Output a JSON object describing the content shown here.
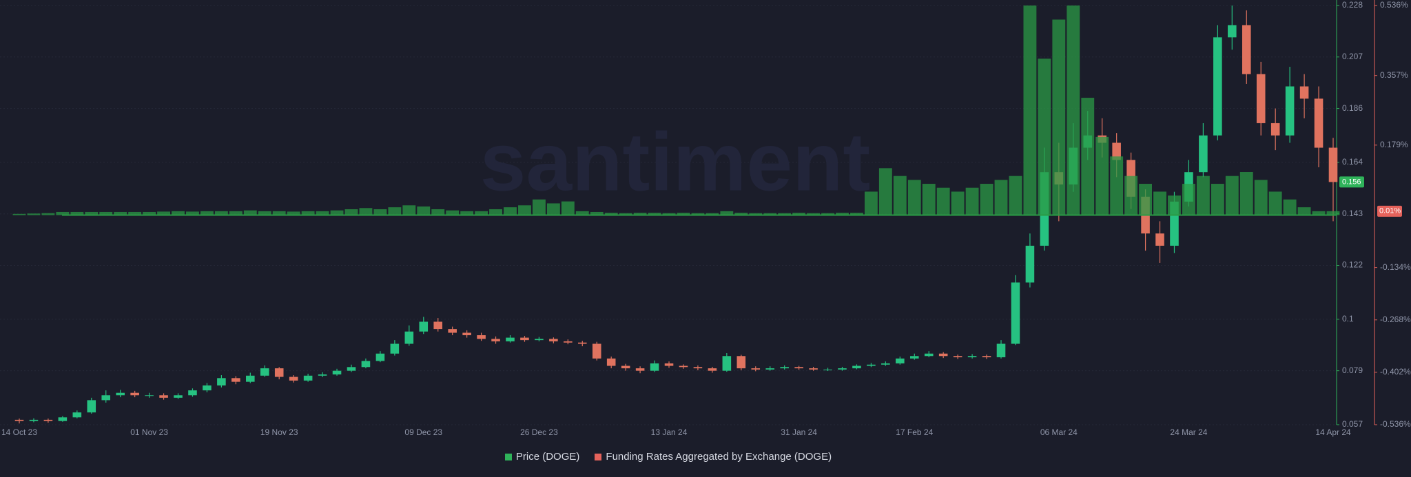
{
  "chart_data": {
    "type": "candlestick",
    "watermark": "santiment",
    "categories": [
      "14 Oct 23",
      null,
      null,
      null,
      null,
      null,
      null,
      null,
      null,
      "01 Nov 23",
      null,
      null,
      null,
      null,
      null,
      null,
      null,
      null,
      "19 Nov 23",
      null,
      null,
      null,
      null,
      null,
      null,
      null,
      null,
      null,
      "09 Dec 23",
      null,
      null,
      null,
      null,
      null,
      null,
      null,
      "26 Dec 23",
      null,
      null,
      null,
      null,
      null,
      null,
      null,
      null,
      "13 Jan 24",
      null,
      null,
      null,
      null,
      null,
      null,
      null,
      null,
      "31 Jan 24",
      null,
      null,
      null,
      null,
      null,
      null,
      null,
      "17 Feb 24",
      null,
      null,
      null,
      null,
      null,
      null,
      null,
      null,
      null,
      "06 Mar 24",
      null,
      null,
      null,
      null,
      null,
      null,
      null,
      null,
      "24 Mar 24",
      null,
      null,
      null,
      null,
      null,
      null,
      null,
      null,
      null,
      "14 Apr 24"
    ],
    "series": [
      {
        "name": "Price (DOGE)",
        "type": "candlestick",
        "color": "#2fb35a",
        "up_color": "#26c281",
        "down_color": "#e0735f",
        "open": [
          0.059,
          0.0585,
          0.059,
          0.0585,
          0.06,
          0.062,
          0.067,
          0.069,
          0.07,
          0.069,
          0.069,
          0.068,
          0.069,
          0.071,
          0.073,
          0.076,
          0.0745,
          0.077,
          0.08,
          0.0765,
          0.075,
          0.077,
          0.0775,
          0.079,
          0.0805,
          0.083,
          0.086,
          0.09,
          0.095,
          0.099,
          0.096,
          0.0945,
          0.0935,
          0.092,
          0.091,
          0.0925,
          0.0915,
          0.092,
          0.091,
          0.0905,
          0.09,
          0.084,
          0.081,
          0.08,
          0.079,
          0.082,
          0.081,
          0.0805,
          0.08,
          0.079,
          0.085,
          0.08,
          0.0795,
          0.08,
          0.0805,
          0.08,
          0.0795,
          0.0795,
          0.08,
          0.081,
          0.0815,
          0.082,
          0.084,
          0.085,
          0.086,
          0.085,
          0.0845,
          0.085,
          0.0845,
          0.09,
          0.115,
          0.13,
          0.16,
          0.155,
          0.17,
          0.175,
          0.172,
          0.165,
          0.15,
          0.135,
          0.13,
          0.148,
          0.16,
          0.175,
          0.215,
          0.22,
          0.2,
          0.18,
          0.175,
          0.195,
          0.19,
          0.17
        ],
        "high": [
          0.0595,
          0.0596,
          0.0595,
          0.0605,
          0.0628,
          0.068,
          0.071,
          0.0712,
          0.0708,
          0.07,
          0.0698,
          0.0698,
          0.0718,
          0.074,
          0.0772,
          0.0768,
          0.0782,
          0.0812,
          0.0805,
          0.0772,
          0.0778,
          0.0784,
          0.0798,
          0.0815,
          0.084,
          0.087,
          0.0915,
          0.0975,
          0.101,
          0.1005,
          0.097,
          0.0955,
          0.0945,
          0.093,
          0.0935,
          0.0932,
          0.0928,
          0.0926,
          0.0918,
          0.0912,
          0.0908,
          0.0848,
          0.0818,
          0.0808,
          0.0832,
          0.0828,
          0.0816,
          0.0812,
          0.0806,
          0.0862,
          0.0855,
          0.0808,
          0.0808,
          0.0812,
          0.081,
          0.0806,
          0.0802,
          0.0806,
          0.0816,
          0.0822,
          0.0828,
          0.0848,
          0.086,
          0.087,
          0.0866,
          0.0856,
          0.0858,
          0.0856,
          0.0915,
          0.118,
          0.135,
          0.17,
          0.172,
          0.18,
          0.185,
          0.182,
          0.176,
          0.168,
          0.153,
          0.14,
          0.152,
          0.165,
          0.18,
          0.22,
          0.228,
          0.226,
          0.205,
          0.186,
          0.203,
          0.2,
          0.195,
          0.174
        ],
        "low": [
          0.0575,
          0.058,
          0.0578,
          0.0582,
          0.0596,
          0.0615,
          0.066,
          0.0682,
          0.0682,
          0.068,
          0.0672,
          0.0675,
          0.0684,
          0.0702,
          0.0722,
          0.0735,
          0.074,
          0.0765,
          0.0755,
          0.0742,
          0.0745,
          0.0764,
          0.077,
          0.0785,
          0.08,
          0.0825,
          0.0852,
          0.0892,
          0.094,
          0.095,
          0.0935,
          0.0925,
          0.0912,
          0.09,
          0.0905,
          0.0908,
          0.091,
          0.0902,
          0.0898,
          0.089,
          0.0832,
          0.08,
          0.079,
          0.078,
          0.0785,
          0.0802,
          0.0798,
          0.0792,
          0.0782,
          0.0786,
          0.0792,
          0.0788,
          0.079,
          0.0795,
          0.0794,
          0.079,
          0.0789,
          0.079,
          0.0796,
          0.0805,
          0.081,
          0.0815,
          0.0835,
          0.0845,
          0.0842,
          0.0838,
          0.084,
          0.0838,
          0.084,
          0.0895,
          0.113,
          0.128,
          0.14,
          0.152,
          0.165,
          0.166,
          0.158,
          0.145,
          0.128,
          0.123,
          0.127,
          0.146,
          0.158,
          0.173,
          0.21,
          0.196,
          0.175,
          0.169,
          0.172,
          0.182,
          0.162,
          0.14
        ],
        "close": [
          0.0585,
          0.059,
          0.0585,
          0.06,
          0.062,
          0.067,
          0.069,
          0.07,
          0.069,
          0.069,
          0.068,
          0.069,
          0.071,
          0.073,
          0.076,
          0.0745,
          0.077,
          0.08,
          0.0765,
          0.075,
          0.077,
          0.0775,
          0.079,
          0.0805,
          0.083,
          0.086,
          0.09,
          0.095,
          0.099,
          0.096,
          0.0945,
          0.0935,
          0.092,
          0.091,
          0.0925,
          0.0915,
          0.092,
          0.091,
          0.0905,
          0.09,
          0.084,
          0.081,
          0.08,
          0.079,
          0.082,
          0.081,
          0.0805,
          0.08,
          0.079,
          0.085,
          0.08,
          0.0795,
          0.08,
          0.0805,
          0.08,
          0.0795,
          0.0795,
          0.08,
          0.081,
          0.0815,
          0.082,
          0.084,
          0.085,
          0.086,
          0.085,
          0.0845,
          0.085,
          0.0845,
          0.09,
          0.115,
          0.13,
          0.16,
          0.155,
          0.17,
          0.175,
          0.172,
          0.165,
          0.15,
          0.135,
          0.13,
          0.148,
          0.16,
          0.175,
          0.215,
          0.22,
          0.2,
          0.18,
          0.175,
          0.195,
          0.19,
          0.17,
          0.156
        ],
        "last_value": 0.156
      },
      {
        "name": "Funding Rates Aggregated by Exchange (DOGE)",
        "type": "bar",
        "axis": "y2",
        "color": "#e5625b",
        "bar_color": "#2b9a45",
        "values": [
          0.003,
          0.004,
          0.005,
          0.008,
          0.008,
          0.008,
          0.008,
          0.008,
          0.008,
          0.008,
          0.009,
          0.01,
          0.009,
          0.01,
          0.01,
          0.01,
          0.012,
          0.01,
          0.01,
          0.009,
          0.01,
          0.01,
          0.012,
          0.015,
          0.018,
          0.015,
          0.02,
          0.025,
          0.022,
          0.015,
          0.012,
          0.01,
          0.01,
          0.015,
          0.02,
          0.025,
          0.04,
          0.03,
          0.035,
          0.01,
          0.008,
          0.006,
          0.005,
          0.006,
          0.006,
          0.005,
          0.006,
          0.005,
          0.005,
          0.01,
          0.006,
          0.005,
          0.005,
          0.005,
          0.006,
          0.005,
          0.005,
          0.006,
          0.006,
          0.06,
          0.12,
          0.1,
          0.09,
          0.08,
          0.07,
          0.06,
          0.07,
          0.08,
          0.09,
          0.1,
          0.536,
          0.4,
          0.5,
          0.536,
          0.3,
          0.2,
          0.15,
          0.1,
          0.08,
          0.06,
          0.05,
          0.08,
          0.1,
          0.08,
          0.1,
          0.11,
          0.09,
          0.06,
          0.04,
          0.02,
          0.01,
          0.01
        ],
        "last_value": {
          "value": 0.01,
          "label": "0.01%"
        }
      }
    ],
    "ylim": [
      0.057,
      0.228
    ],
    "yticks": [
      0.057,
      0.079,
      0.1,
      0.122,
      0.143,
      0.164,
      0.186,
      0.207,
      0.228
    ],
    "y2lim": [
      -0.536,
      0.536
    ],
    "y2ticks": [
      {
        "value": -0.536,
        "label": "-0.536%"
      },
      {
        "value": -0.402,
        "label": "-0.402%"
      },
      {
        "value": -0.268,
        "label": "-0.268%"
      },
      {
        "value": -0.134,
        "label": "-0.134%"
      },
      {
        "value": 0.179,
        "label": "0.179%"
      },
      {
        "value": 0.357,
        "label": "0.357%"
      },
      {
        "value": 0.536,
        "label": "0.536%"
      }
    ],
    "grid": true
  }
}
